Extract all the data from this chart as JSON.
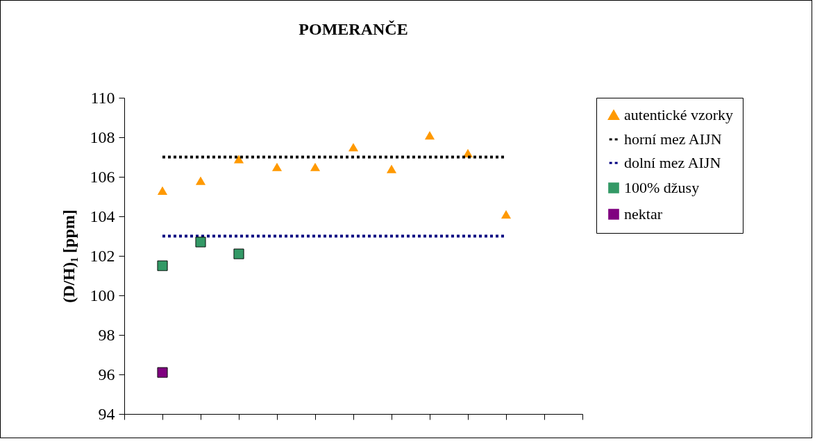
{
  "chart_data": {
    "type": "scatter",
    "title": "POMERANČE",
    "ylabel": "(D/H)₁ [ppm]",
    "categories": [
      null,
      null,
      null,
      null,
      null,
      null,
      null,
      null,
      null,
      null,
      null,
      null,
      null
    ],
    "ylim": [
      94,
      110
    ],
    "yticks": [
      94,
      96,
      98,
      100,
      102,
      104,
      106,
      108,
      110
    ],
    "grid": false,
    "legend": "right",
    "tick_labels": "y",
    "series": [
      {
        "name": "autentické vzorky",
        "marker": "triangle",
        "color": "#ff9900",
        "values": [
          null,
          105.3,
          105.8,
          106.9,
          106.5,
          106.5,
          107.5,
          106.4,
          108.1,
          107.2,
          104.1,
          null,
          null
        ]
      },
      {
        "name": "horní mez AIJN",
        "type": "line",
        "line_style": "dashed",
        "marker": "none",
        "color": "#000000",
        "values": [
          null,
          107,
          107,
          107,
          107,
          107,
          107,
          107,
          107,
          107,
          107,
          null,
          null
        ]
      },
      {
        "name": "dolní mez AIJN",
        "type": "line",
        "line_style": "dashed",
        "marker": "none",
        "color": "#000080",
        "values": [
          null,
          103,
          103,
          103,
          103,
          103,
          103,
          103,
          103,
          103,
          103,
          null,
          null
        ]
      },
      {
        "name": "100% džusy",
        "marker": "square",
        "color": "#339966",
        "values": [
          null,
          101.5,
          102.7,
          102.1,
          null,
          null,
          null,
          null,
          null,
          null,
          null,
          null,
          null
        ]
      },
      {
        "name": "nektar",
        "marker": "square",
        "color": "#800080",
        "values": [
          null,
          96.1,
          null,
          null,
          null,
          null,
          null,
          null,
          null,
          null,
          null,
          null,
          null
        ]
      }
    ]
  }
}
